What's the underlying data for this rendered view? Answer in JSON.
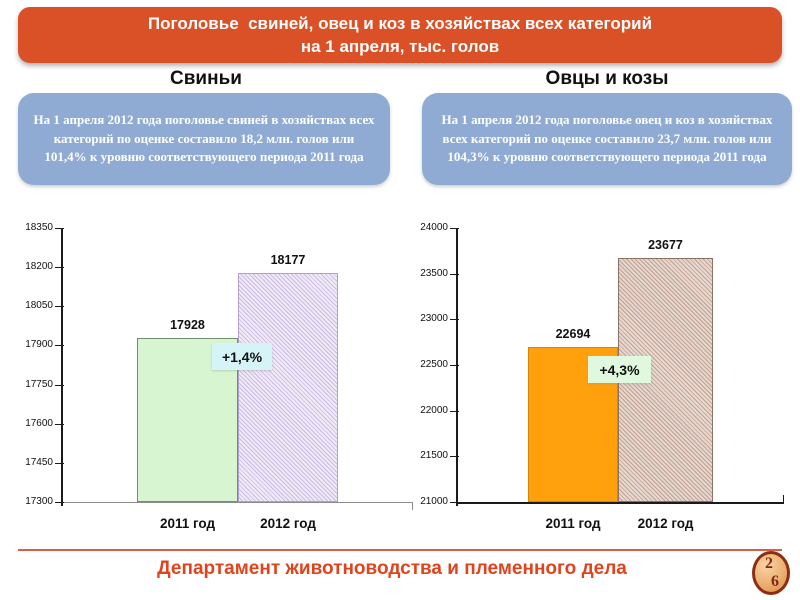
{
  "slide": {
    "title_line1": "Поголовье  свиней, овец и коз в хозяйствах всех категорий",
    "title_line2": "на 1 апреля, тыс. голов",
    "footer_text": "Департамент животноводства и племенного дела",
    "page_badge": {
      "digit_top": "2",
      "digit_bottom": "6"
    }
  },
  "sections": [
    {
      "header": "Свиньи",
      "info_text": "На 1 апреля 2012 года поголовье свиней в хозяйствах всех категорий по оценке составило 18,2 млн. голов или 101,4% к уровню соответствующего периода 2011 года"
    },
    {
      "header": "Овцы и козы",
      "info_text": "На 1 апреля 2012 года поголовье овец и коз в хозяйствах всех категорий по оценке составило 23,7 млн. голов или 104,3% к уровню соответствующего периода 2011 года"
    }
  ],
  "colors": {
    "banner_bg": "#DB5127",
    "info_box_bg": "#8FABD3",
    "footer_text": "#E1431C",
    "divider": "#D4604A",
    "badge_border": "#8E2D12",
    "badge_fill": "#ECAF72",
    "badge_text": "#7E2912"
  },
  "chart_data": [
    {
      "type": "bar",
      "title": "Свиньи",
      "categories": [
        "2011 год",
        "2012 год"
      ],
      "values": [
        17928,
        18177
      ],
      "data_labels": [
        "17928",
        "18177"
      ],
      "annotation": {
        "text": "+1,4%",
        "bg": "#D5F4F8"
      },
      "ylim": [
        17300,
        18350
      ],
      "yticks": [
        17300,
        17450,
        17600,
        17750,
        17900,
        18050,
        18200,
        18350
      ],
      "bars": [
        {
          "fill": "#D7F5D0",
          "border": "#6F8F6F",
          "hatch": null
        },
        {
          "fill": "#F0EAF8",
          "border": "#B1A0CE",
          "hatch": "#CDBCE2"
        }
      ],
      "grid": false,
      "legend": false,
      "xlabel": "",
      "ylabel": ""
    },
    {
      "type": "bar",
      "title": "Овцы и козы",
      "categories": [
        "2011 год",
        "2012 год"
      ],
      "values": [
        22694,
        23677
      ],
      "data_labels": [
        "22694",
        "23677"
      ],
      "annotation": {
        "text": "+4,3%",
        "bg": "#DFF8DE"
      },
      "ylim": [
        21000,
        24000
      ],
      "yticks": [
        21000,
        21500,
        22000,
        22500,
        23000,
        23500,
        24000
      ],
      "bars": [
        {
          "fill": "#FFA00C",
          "border": "#D88700",
          "hatch": null
        },
        {
          "fill": "#E5D6CE",
          "border": "#8A7265",
          "hatch": "#C2A294"
        }
      ],
      "grid": false,
      "legend": false,
      "xlabel": "",
      "ylabel": ""
    }
  ]
}
